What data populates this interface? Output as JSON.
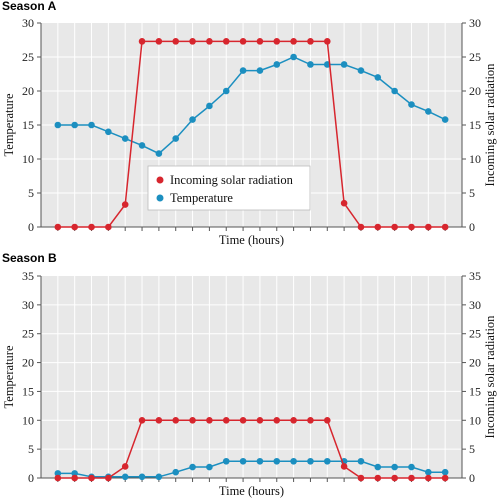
{
  "colors": {
    "solar": "#d7262e",
    "temperature": "#1c8fc0",
    "plot_bg": "#e8e8e8",
    "grid": "#ffffff",
    "axis": "#555555"
  },
  "chart_data": [
    {
      "type": "line",
      "panel_label": "Season A",
      "xlabel": "Time (hours)",
      "ylabel": "Temperature",
      "y2label": "Incoming solar radiation",
      "ylim": [
        0,
        30
      ],
      "y2lim": [
        0,
        30
      ],
      "yticks": [
        0,
        5,
        10,
        15,
        20,
        25,
        30
      ],
      "x": [
        1,
        2,
        3,
        4,
        5,
        6,
        7,
        8,
        9,
        10,
        11,
        12,
        13,
        14,
        15,
        16,
        17,
        18,
        19,
        20,
        21,
        22,
        23,
        24
      ],
      "xlim": [
        0,
        25
      ],
      "legend": {
        "position": "center"
      },
      "series": [
        {
          "name": "Incoming solar radiation",
          "axis": "right",
          "color_key": "solar",
          "values": [
            0,
            0,
            0,
            0,
            3.3,
            27.3,
            27.3,
            27.3,
            27.3,
            27.3,
            27.3,
            27.3,
            27.3,
            27.3,
            27.3,
            27.3,
            27.3,
            3.5,
            0,
            0,
            0,
            0,
            0,
            0
          ]
        },
        {
          "name": "Temperature",
          "axis": "left",
          "color_key": "temperature",
          "values": [
            15,
            15,
            15,
            14,
            13,
            12,
            10.8,
            13,
            15.8,
            17.8,
            20,
            23,
            23,
            23.9,
            25,
            23.9,
            23.9,
            23.9,
            23,
            22,
            20,
            18,
            17,
            15.8
          ]
        }
      ]
    },
    {
      "type": "line",
      "panel_label": "Season B",
      "xlabel": "Time (hours)",
      "ylabel": "Temperature",
      "y2label": "Incoming solar radiation",
      "ylim": [
        0,
        35
      ],
      "y2lim": [
        0,
        35
      ],
      "yticks": [
        0,
        5,
        10,
        15,
        20,
        25,
        30,
        35
      ],
      "x": [
        1,
        2,
        3,
        4,
        5,
        6,
        7,
        8,
        9,
        10,
        11,
        12,
        13,
        14,
        15,
        16,
        17,
        18,
        19,
        20,
        21,
        22,
        23,
        24
      ],
      "xlim": [
        0,
        25
      ],
      "series": [
        {
          "name": "Incoming solar radiation",
          "axis": "right",
          "color_key": "solar",
          "values": [
            0,
            0,
            0,
            0,
            2,
            10,
            10,
            10,
            10,
            10,
            10,
            10,
            10,
            10,
            10,
            10,
            10,
            2,
            0,
            0,
            0,
            0,
            0,
            0
          ]
        },
        {
          "name": "Temperature",
          "axis": "left",
          "color_key": "temperature",
          "values": [
            0.8,
            0.8,
            0.2,
            0.2,
            0.2,
            0.2,
            0.2,
            1,
            1.9,
            1.9,
            2.9,
            2.9,
            2.9,
            2.9,
            2.9,
            2.9,
            2.9,
            2.9,
            2.9,
            1.9,
            1.9,
            1.9,
            1,
            1
          ]
        }
      ]
    }
  ]
}
